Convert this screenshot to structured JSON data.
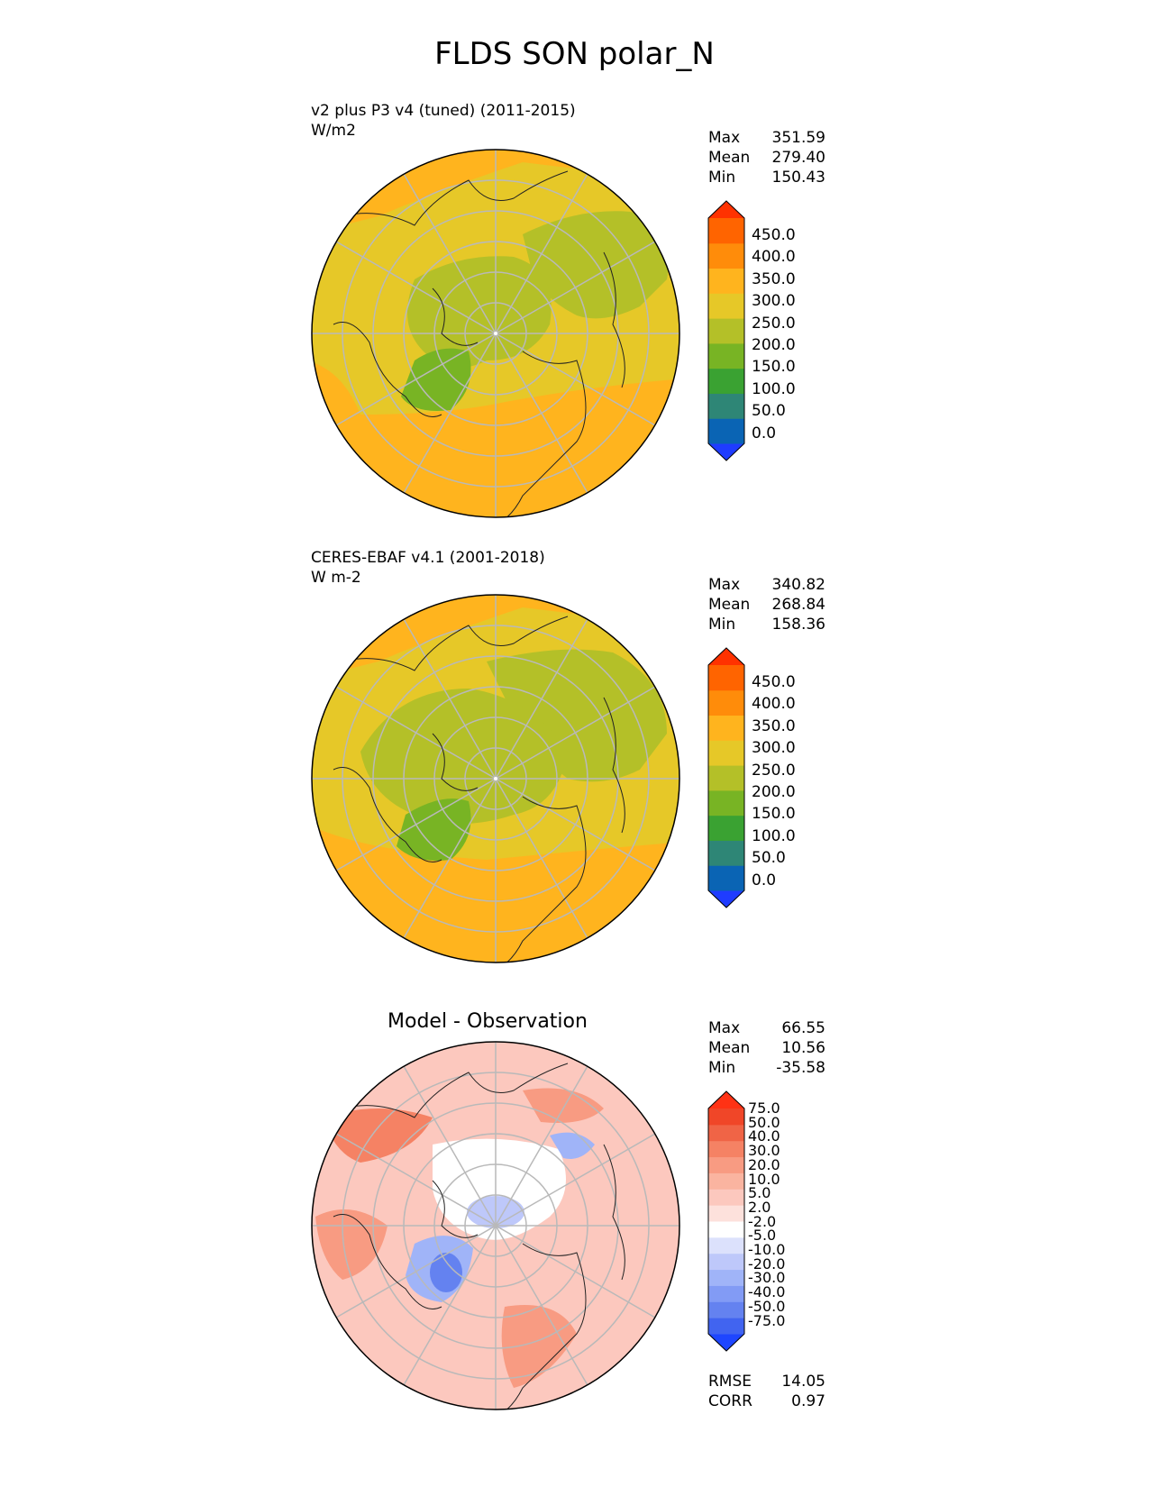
{
  "figure_title": "FLDS SON polar_N",
  "panels": [
    {
      "title": "v2 plus P3 v4 (tuned) (2011-2015)",
      "units": "W/m2",
      "stats": [
        {
          "label": "Max",
          "value": "351.59"
        },
        {
          "label": "Mean",
          "value": "279.40"
        },
        {
          "label": "Min",
          "value": "150.43"
        }
      ]
    },
    {
      "title": "CERES-EBAF v4.1 (2001-2018)",
      "units": "W m-2",
      "stats": [
        {
          "label": "Max",
          "value": "340.82"
        },
        {
          "label": "Mean",
          "value": "268.84"
        },
        {
          "label": "Min",
          "value": "158.36"
        }
      ]
    },
    {
      "title": "Model - Observation",
      "stats": [
        {
          "label": "Max",
          "value": "66.55"
        },
        {
          "label": "Mean",
          "value": "10.56"
        },
        {
          "label": "Min",
          "value": "-35.58"
        }
      ],
      "metrics": [
        {
          "label": "RMSE",
          "value": "14.05"
        },
        {
          "label": "CORR",
          "value": "0.97"
        }
      ]
    }
  ],
  "colorbars": {
    "field": {
      "colors": [
        "#1f3cff",
        "#0a64b4",
        "#2e8676",
        "#3aa232",
        "#78b424",
        "#b4c028",
        "#e6c828",
        "#ffb41e",
        "#ff8c0a",
        "#ff6400",
        "#ff3200"
      ],
      "ticks": [
        "450.0",
        "400.0",
        "350.0",
        "300.0",
        "250.0",
        "200.0",
        "150.0",
        "100.0",
        "50.0",
        "0.0"
      ]
    },
    "diff": {
      "colors": [
        "#1e46ff",
        "#4164f0",
        "#6482f0",
        "#829bf5",
        "#a0b4f8",
        "#bec8fa",
        "#dce1fc",
        "#ffffff",
        "#fde1dc",
        "#fcc8be",
        "#fab4a0",
        "#f89b82",
        "#f58264",
        "#f06446",
        "#f04628",
        "#ff3214"
      ],
      "ticks": [
        "75.0",
        "50.0",
        "40.0",
        "30.0",
        "20.0",
        "10.0",
        "5.0",
        "2.0",
        "-2.0",
        "-5.0",
        "-10.0",
        "-20.0",
        "-30.0",
        "-40.0",
        "-50.0",
        "-75.0"
      ]
    }
  }
}
